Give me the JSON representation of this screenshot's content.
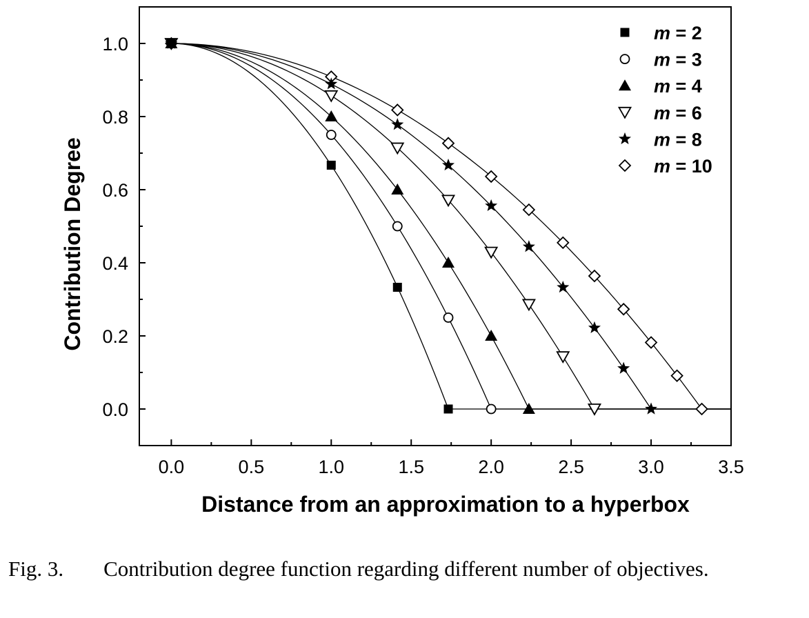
{
  "chart_data": {
    "type": "scatter",
    "title": "",
    "xlabel": "Distance from an approximation to a hyperbox",
    "ylabel": "Contribution Degree",
    "xlim": [
      -0.2,
      3.5
    ],
    "ylim": [
      -0.1,
      1.1
    ],
    "x_ticks": [
      "0.0",
      "0.5",
      "1.0",
      "1.5",
      "2.0",
      "2.5",
      "3.0",
      "3.5"
    ],
    "y_ticks": [
      "0.0",
      "0.2",
      "0.4",
      "0.6",
      "0.8",
      "1.0"
    ],
    "grid": false,
    "legend_position": "top-right",
    "series": [
      {
        "name": "m = 2",
        "marker": "filled-square",
        "points": [
          [
            0,
            1.0
          ],
          [
            1.0,
            0.667
          ],
          [
            1.414,
            0.333
          ],
          [
            1.732,
            0.0
          ]
        ]
      },
      {
        "name": "m = 3",
        "marker": "open-circle",
        "points": [
          [
            0,
            1.0
          ],
          [
            1.0,
            0.75
          ],
          [
            1.414,
            0.5
          ],
          [
            1.732,
            0.25
          ],
          [
            2.0,
            0.0
          ]
        ]
      },
      {
        "name": "m = 4",
        "marker": "filled-triangle-up",
        "points": [
          [
            0,
            1.0
          ],
          [
            1.0,
            0.8
          ],
          [
            1.414,
            0.6
          ],
          [
            1.732,
            0.4
          ],
          [
            2.0,
            0.2
          ],
          [
            2.236,
            0.0
          ]
        ]
      },
      {
        "name": "m = 6",
        "marker": "open-triangle-down",
        "points": [
          [
            0,
            1.0
          ],
          [
            1.0,
            0.857
          ],
          [
            1.414,
            0.714
          ],
          [
            1.732,
            0.571
          ],
          [
            2.0,
            0.429
          ],
          [
            2.236,
            0.286
          ],
          [
            2.449,
            0.143
          ],
          [
            2.646,
            0.0
          ]
        ]
      },
      {
        "name": "m = 8",
        "marker": "filled-star",
        "points": [
          [
            0,
            1.0
          ],
          [
            1.0,
            0.889
          ],
          [
            1.414,
            0.778
          ],
          [
            1.732,
            0.667
          ],
          [
            2.0,
            0.556
          ],
          [
            2.236,
            0.444
          ],
          [
            2.449,
            0.333
          ],
          [
            2.646,
            0.222
          ],
          [
            2.828,
            0.111
          ],
          [
            3.0,
            0.0
          ]
        ]
      },
      {
        "name": "m = 10",
        "marker": "open-diamond",
        "points": [
          [
            0,
            1.0
          ],
          [
            1.0,
            0.909
          ],
          [
            1.414,
            0.818
          ],
          [
            1.732,
            0.727
          ],
          [
            2.0,
            0.636
          ],
          [
            2.236,
            0.545
          ],
          [
            2.449,
            0.455
          ],
          [
            2.646,
            0.364
          ],
          [
            2.828,
            0.273
          ],
          [
            3.0,
            0.182
          ],
          [
            3.162,
            0.091
          ],
          [
            3.317,
            0.0
          ]
        ]
      }
    ]
  },
  "legend": {
    "entries": [
      {
        "var": "m",
        "rest": " = 2"
      },
      {
        "var": "m",
        "rest": " = 3"
      },
      {
        "var": "m",
        "rest": " = 4"
      },
      {
        "var": "m",
        "rest": " = 6"
      },
      {
        "var": "m",
        "rest": " = 8"
      },
      {
        "var": "m",
        "rest": " = 10"
      }
    ]
  },
  "caption": {
    "label": "Fig. 3.",
    "text": "Contribution degree function regarding different number of objectives."
  }
}
